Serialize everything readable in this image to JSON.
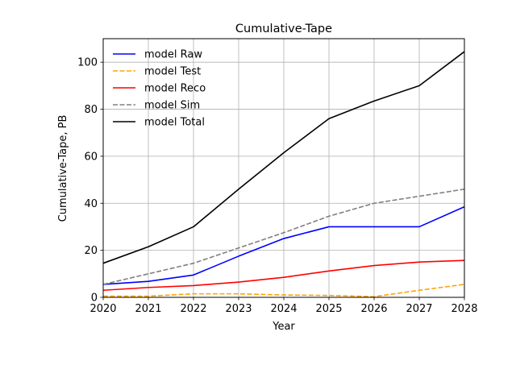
{
  "chart_data": {
    "type": "line",
    "title": "Cumulative-Tape",
    "xlabel": "Year",
    "ylabel": "Cumulative-Tape, PB",
    "xlim": [
      2020,
      2028
    ],
    "ylim": [
      0,
      110
    ],
    "xticks": [
      2020,
      2021,
      2022,
      2023,
      2024,
      2025,
      2026,
      2027,
      2028
    ],
    "yticks": [
      0,
      20,
      40,
      60,
      80,
      100
    ],
    "grid": true,
    "legend_position": "top-left",
    "x": [
      2020,
      2021,
      2022,
      2023,
      2024,
      2025,
      2026,
      2027,
      2028
    ],
    "series": [
      {
        "name": "model Raw",
        "color": "#0000ff",
        "dash": "solid",
        "values": [
          5.5,
          6.8,
          9.5,
          17.5,
          25.0,
          30.0,
          30.0,
          30.0,
          38.5
        ]
      },
      {
        "name": "model Test",
        "color": "#ffa500",
        "dash": "dashed",
        "values": [
          0.5,
          0.5,
          1.5,
          1.5,
          1.0,
          0.8,
          0.3,
          3.0,
          5.5
        ]
      },
      {
        "name": "model Reco",
        "color": "#ff0000",
        "dash": "solid",
        "values": [
          3.0,
          4.2,
          5.0,
          6.5,
          8.5,
          11.2,
          13.5,
          15.0,
          15.7
        ]
      },
      {
        "name": "model Sim",
        "color": "#808080",
        "dash": "dashed",
        "values": [
          5.5,
          10.0,
          14.5,
          21.0,
          27.5,
          34.5,
          40.0,
          43.0,
          46.0
        ]
      },
      {
        "name": "model Total",
        "color": "#000000",
        "dash": "solid",
        "values": [
          14.5,
          21.5,
          30.0,
          46.0,
          61.5,
          76.0,
          83.5,
          90.0,
          104.5
        ]
      }
    ]
  }
}
